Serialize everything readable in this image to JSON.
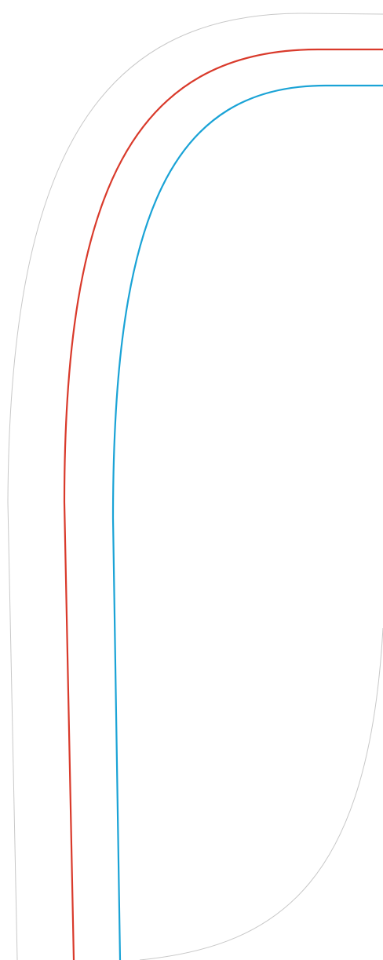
{
  "diagram": {
    "background": "#ffffff",
    "lines": [
      {
        "id": "outline",
        "color": "#c8c8c8"
      },
      {
        "id": "red-line",
        "color": "#d93a2b"
      },
      {
        "id": "blue-line",
        "color": "#1aa3d6"
      }
    ]
  }
}
